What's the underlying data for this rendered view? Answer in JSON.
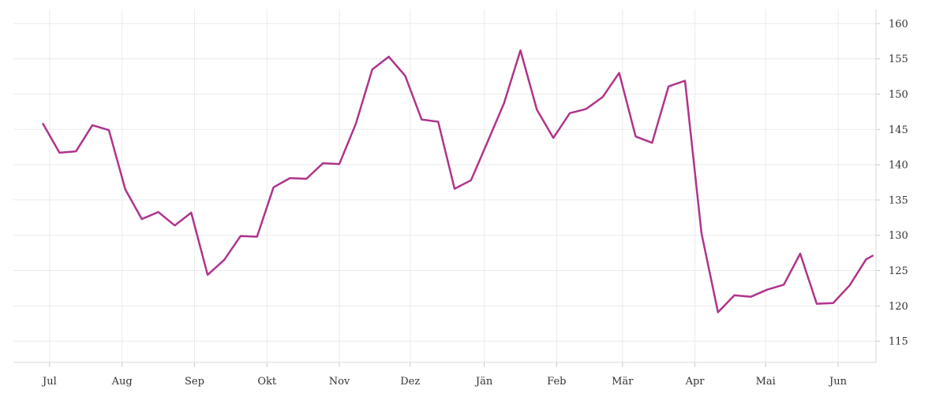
{
  "chart_data": {
    "type": "line",
    "title": "",
    "xlabel": "",
    "ylabel": "",
    "grid": true,
    "y_axis_side": "right",
    "ylim": [
      112,
      162
    ],
    "y_ticks": [
      115,
      120,
      125,
      130,
      135,
      140,
      145,
      150,
      155,
      160
    ],
    "x_ticks": [
      {
        "label": "Jul",
        "week": 0.4
      },
      {
        "label": "Aug",
        "week": 4.8
      },
      {
        "label": "Sep",
        "week": 9.2
      },
      {
        "label": "Okt",
        "week": 13.6
      },
      {
        "label": "Nov",
        "week": 18.0
      },
      {
        "label": "Dez",
        "week": 22.3
      },
      {
        "label": "Jän",
        "week": 26.8
      },
      {
        "label": "Feb",
        "week": 31.2
      },
      {
        "label": "Mär",
        "week": 35.2
      },
      {
        "label": "Apr",
        "week": 39.6
      },
      {
        "label": "Mai",
        "week": 43.9
      },
      {
        "label": "Jun",
        "week": 48.3
      }
    ],
    "xlim": [
      -1.8,
      50.6
    ],
    "series": [
      {
        "name": "",
        "color": "#b0348c",
        "x": [
          0,
          1,
          2,
          3,
          4,
          5,
          6,
          7,
          8,
          9,
          10,
          11,
          12,
          13,
          14,
          15,
          16,
          17,
          18,
          19,
          20,
          21,
          22,
          23,
          24,
          25,
          26,
          27,
          28,
          29,
          30,
          31,
          32,
          33,
          34,
          35,
          36,
          37,
          38,
          39,
          40,
          41,
          42,
          43,
          44,
          45,
          46,
          47,
          48,
          49,
          50,
          50.4
        ],
        "values": [
          145.8,
          141.7,
          141.9,
          145.6,
          144.9,
          136.5,
          132.3,
          133.3,
          131.4,
          133.2,
          124.4,
          126.5,
          129.9,
          129.8,
          136.8,
          138.1,
          138.0,
          140.2,
          140.1,
          145.8,
          153.5,
          155.3,
          152.6,
          146.4,
          146.1,
          136.6,
          137.8,
          143.2,
          148.7,
          156.2,
          147.8,
          143.8,
          147.3,
          147.9,
          149.6,
          153.0,
          144.0,
          143.1,
          151.1,
          151.9,
          130.3,
          119.1,
          121.5,
          121.3,
          122.3,
          123.0,
          127.4,
          120.3,
          120.4,
          122.9,
          126.6,
          127.1
        ]
      }
    ]
  }
}
